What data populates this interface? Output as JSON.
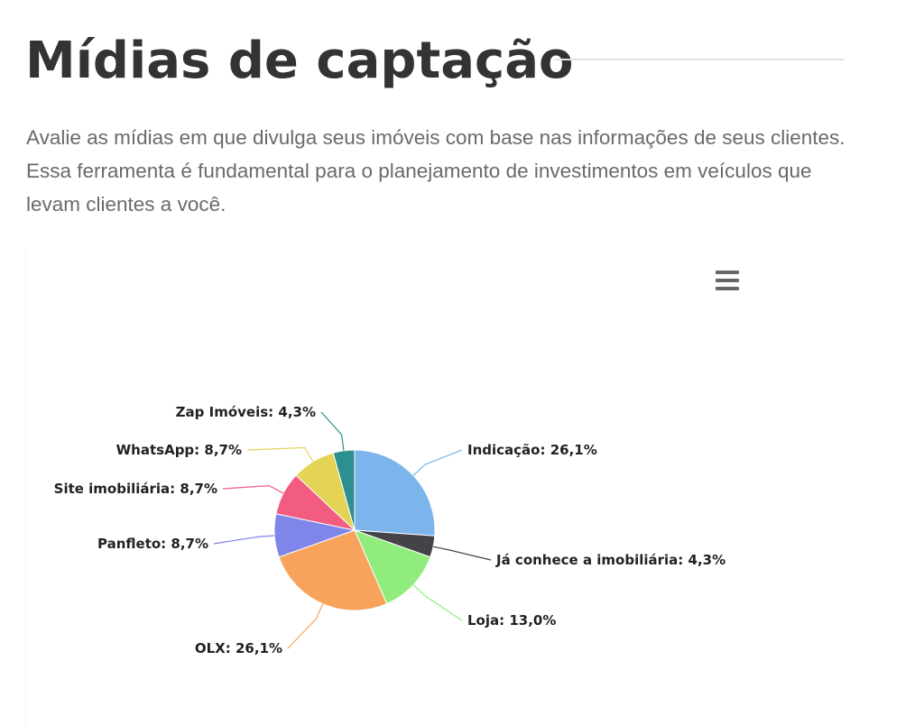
{
  "header": {
    "title": "Mídias de captação",
    "description": "Avalie as mídias em que divulga seus imóveis com base nas informações de seus clientes. Essa ferramenta é fundamental para o planejamento de investimentos em veículos que levam clientes a você."
  },
  "chart_menu": {
    "icon": "hamburger-menu-icon"
  },
  "chart_data": {
    "type": "pie",
    "title": "",
    "legend": "none",
    "slices": [
      {
        "name": "Indicação",
        "value": 26.1,
        "label": "Indicação: 26,1%",
        "color": "#7cb5ec"
      },
      {
        "name": "Já conhece a imobiliária",
        "value": 4.3,
        "label": "Já conhece a imobiliária: 4,3%",
        "color": "#434348"
      },
      {
        "name": "Loja",
        "value": 13.0,
        "label": "Loja: 13,0%",
        "color": "#90ed7d"
      },
      {
        "name": "OLX",
        "value": 26.1,
        "label": "OLX: 26,1%",
        "color": "#f7a35c"
      },
      {
        "name": "Panfleto",
        "value": 8.7,
        "label": "Panfleto: 8,7%",
        "color": "#8085e9"
      },
      {
        "name": "Site imobiliária",
        "value": 8.7,
        "label": "Site imobiliária: 8,7%",
        "color": "#f15c80"
      },
      {
        "name": "WhatsApp",
        "value": 8.7,
        "label": "WhatsApp: 8,7%",
        "color": "#e4d354"
      },
      {
        "name": "Zap Imóveis",
        "value": 4.3,
        "label": "Zap Imóveis: 4,3%",
        "color": "#2b908f"
      }
    ]
  }
}
